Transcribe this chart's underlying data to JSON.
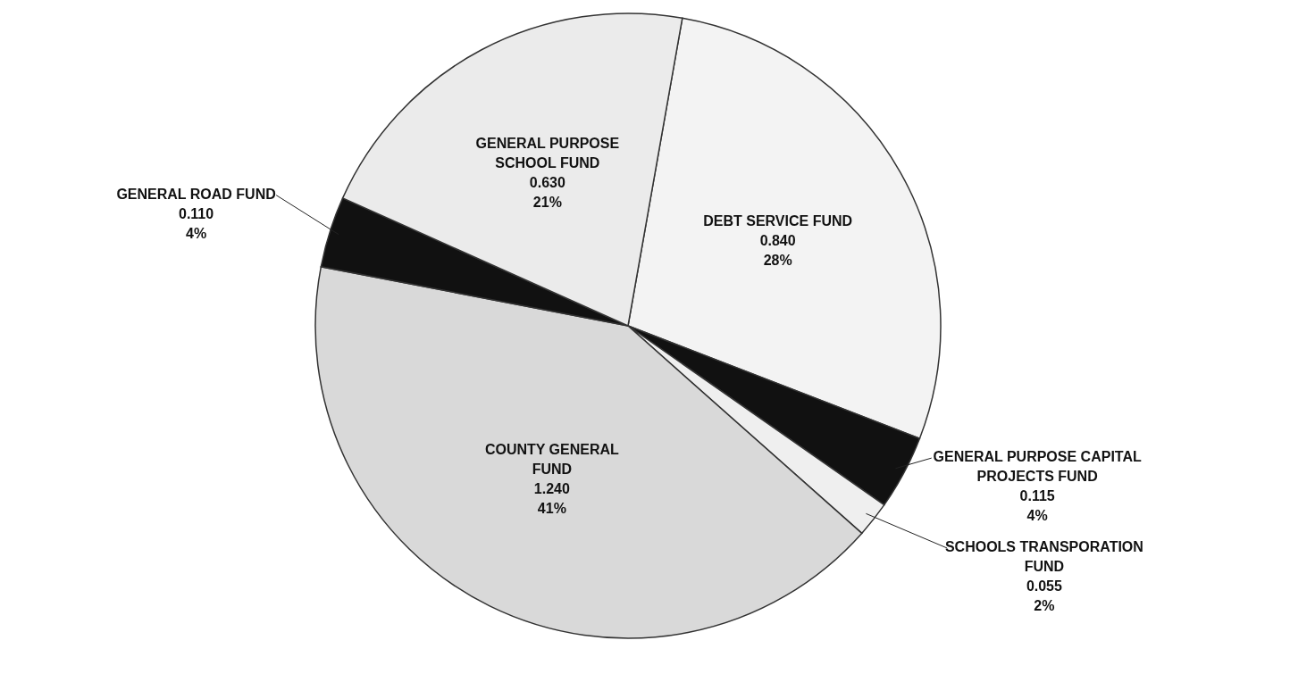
{
  "chart_data": {
    "type": "pie",
    "categories": [
      "DEBT SERVICE FUND",
      "GENERAL PURPOSE CAPITAL PROJECTS FUND",
      "SCHOOLS TRANSPORATION FUND",
      "COUNTY GENERAL FUND",
      "GENERAL ROAD FUND",
      "GENERAL PURPOSE SCHOOL FUND"
    ],
    "values": [
      0.84,
      0.115,
      0.055,
      1.24,
      0.11,
      0.63
    ],
    "colors": [
      "#f3f3f3",
      "#111111",
      "#efefef",
      "#d9d9d9",
      "#111111",
      "#ebebeb"
    ],
    "value_labels": [
      "0.840\n28%",
      "0.115\n4%",
      "0.055\n2%",
      "1.240\n41%",
      "0.110\n4%",
      "0.630\n21%"
    ],
    "legend": false
  }
}
